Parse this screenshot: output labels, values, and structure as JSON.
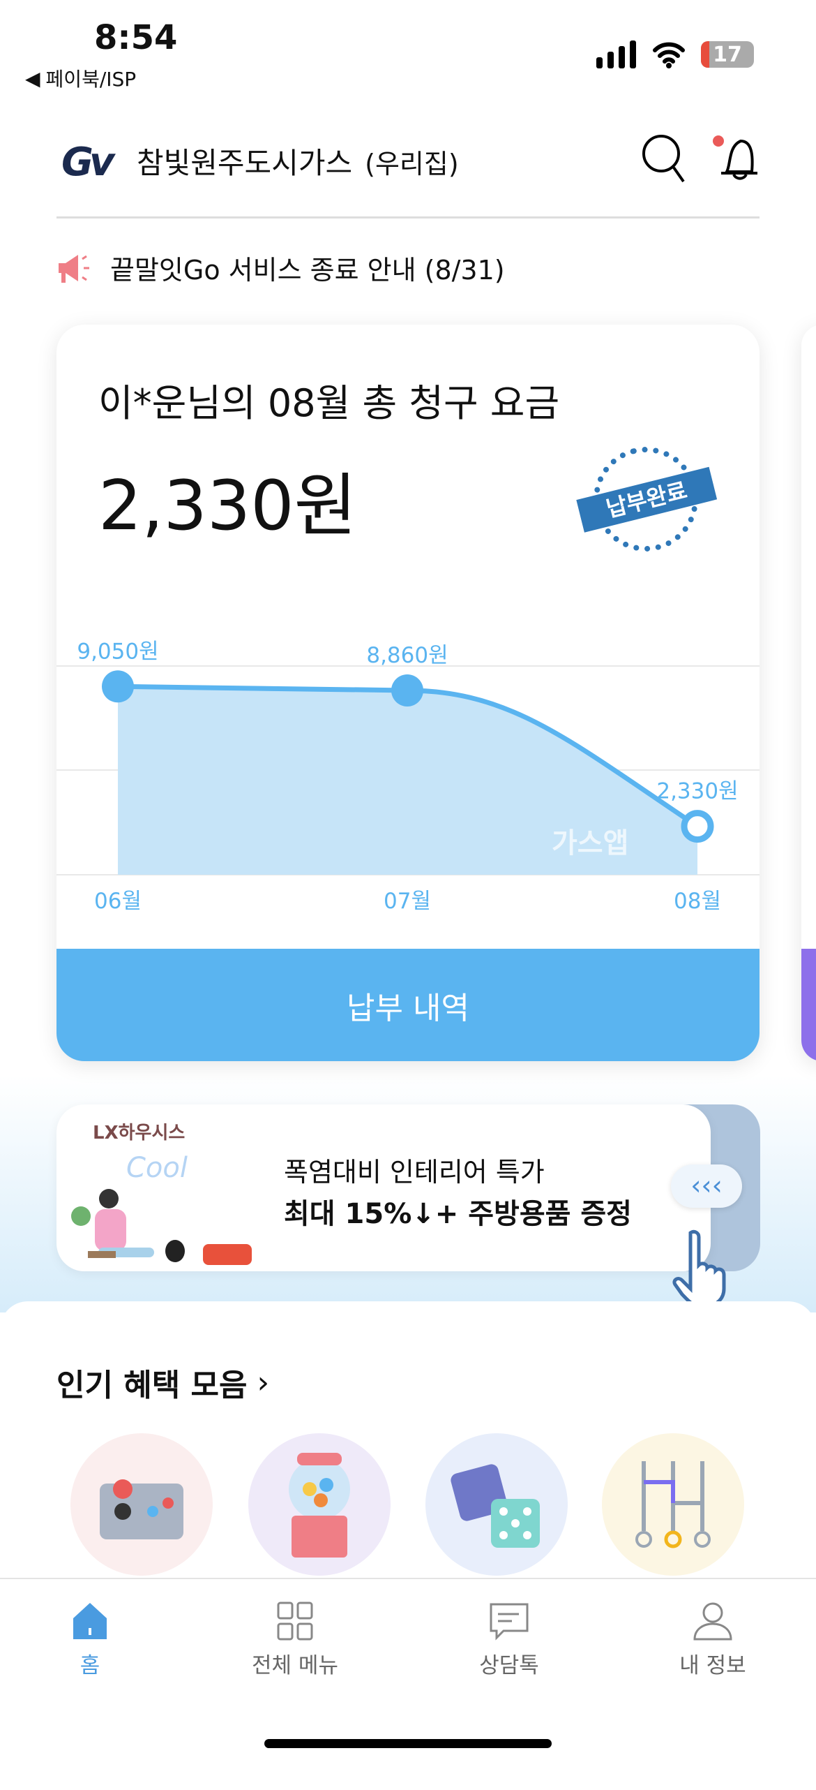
{
  "status": {
    "time": "8:54",
    "back_app": "페이북/ISP",
    "battery": "17"
  },
  "header": {
    "logo": "Gv",
    "title": "참빛원주도시가스",
    "subtitle": "(우리집)"
  },
  "notice": {
    "text": "끝말잇Go 서비스 종료 안내 (8/31)"
  },
  "bill_card": {
    "title": "이*운님의 08월 총 청구 요금",
    "amount": "2,330원",
    "stamp": "납부완료",
    "button": "납부 내역",
    "watermark": "가스앱"
  },
  "chart_data": {
    "type": "area",
    "categories": [
      "06월",
      "07월",
      "08월"
    ],
    "values": [
      9050,
      8860,
      2330
    ],
    "data_labels": [
      "9,050원",
      "8,860원",
      "2,330원"
    ],
    "ylim": [
      0,
      10000
    ],
    "grid": true,
    "color": "#5ab4f0"
  },
  "banner": {
    "brand": "LX하우시스",
    "line1": "폭염대비 인테리어 특가",
    "line2": "최대 15%↓+ 주방용품 증정",
    "deco": "Cool"
  },
  "benefits": {
    "title": "인기 혜택 모음",
    "items": [
      {
        "icon": "arcade-joystick-icon",
        "bg": "#fbeeee"
      },
      {
        "icon": "gumball-machine-icon",
        "bg": "#efeaf9"
      },
      {
        "icon": "dice-icon",
        "bg": "#e8eefb"
      },
      {
        "icon": "ladder-game-icon",
        "bg": "#fcf6e3"
      }
    ]
  },
  "tabbar": {
    "items": [
      {
        "label": "홈",
        "active": true
      },
      {
        "label": "전체 메뉴"
      },
      {
        "label": "상담톡"
      },
      {
        "label": "내 정보"
      }
    ]
  }
}
